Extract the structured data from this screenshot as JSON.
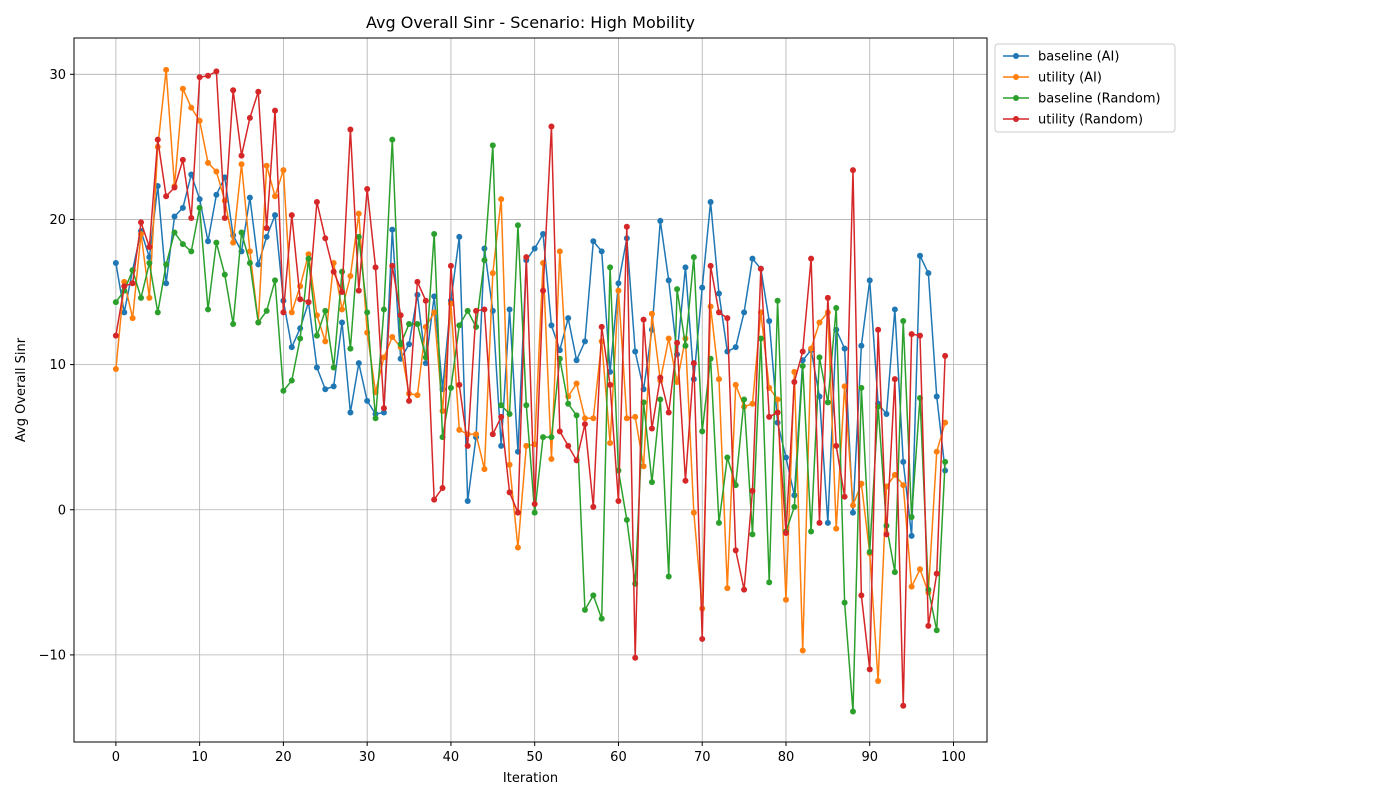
{
  "chart_data": {
    "type": "line",
    "title": "Avg Overall Sinr - Scenario: High Mobility",
    "xlabel": "Iteration",
    "ylabel": "Avg Overall Sinr",
    "xlim": [
      -5,
      104
    ],
    "ylim": [
      -16.0,
      32.5
    ],
    "x_ticks": [
      0,
      10,
      20,
      30,
      40,
      50,
      60,
      70,
      80,
      90,
      100
    ],
    "y_ticks": [
      -10,
      0,
      10,
      20,
      30
    ],
    "y_tick_labels": [
      "−10",
      "0",
      "10",
      "20",
      "30"
    ],
    "grid": true,
    "legend_position": "outside-upper-right",
    "x": [
      0,
      1,
      2,
      3,
      4,
      5,
      6,
      7,
      8,
      9,
      10,
      11,
      12,
      13,
      14,
      15,
      16,
      17,
      18,
      19,
      20,
      21,
      22,
      23,
      24,
      25,
      26,
      27,
      28,
      29,
      30,
      31,
      32,
      33,
      34,
      35,
      36,
      37,
      38,
      39,
      40,
      41,
      42,
      43,
      44,
      45,
      46,
      47,
      48,
      49,
      50,
      51,
      52,
      53,
      54,
      55,
      56,
      57,
      58,
      59,
      60,
      61,
      62,
      63,
      64,
      65,
      66,
      67,
      68,
      69,
      70,
      71,
      72,
      73,
      74,
      75,
      76,
      77,
      78,
      79,
      80,
      81,
      82,
      83,
      84,
      85,
      86,
      87,
      88,
      89,
      90,
      91,
      92,
      93,
      94,
      95,
      96,
      97,
      98,
      99
    ],
    "series": [
      {
        "name": "baseline (AI)",
        "color": "#1f77b4",
        "values": [
          17.0,
          13.6,
          16.5,
          19.2,
          17.4,
          22.3,
          15.6,
          20.2,
          20.8,
          23.1,
          21.4,
          18.5,
          21.7,
          22.9,
          18.9,
          17.8,
          21.5,
          16.9,
          18.8,
          20.3,
          14.4,
          11.2,
          12.5,
          14.3,
          9.8,
          8.3,
          8.5,
          12.9,
          6.7,
          10.1,
          7.5,
          6.6,
          6.7,
          19.3,
          10.4,
          11.4,
          14.8,
          10.1,
          14.7,
          8.3,
          14.4,
          18.8,
          0.6,
          5.0,
          18.0,
          13.7,
          4.4,
          13.8,
          4.0,
          17.2,
          18.0,
          19.0,
          12.7,
          11.0,
          13.2,
          10.3,
          11.6,
          18.5,
          17.8,
          9.5,
          15.6,
          18.7,
          10.9,
          8.3,
          12.4,
          19.9,
          15.8,
          10.7,
          16.7,
          9.0,
          15.3,
          21.2,
          14.9,
          10.9,
          11.2,
          13.6,
          17.3,
          16.6,
          13.0,
          6.0,
          3.6,
          1.0,
          10.3,
          11.0,
          7.8,
          -0.9,
          12.4,
          11.1,
          -0.2,
          11.3,
          15.8,
          7.3,
          6.6,
          13.8,
          3.3,
          -1.8,
          17.5,
          16.3,
          7.8,
          2.7
        ]
      },
      {
        "name": "utility (AI)",
        "color": "#ff7f0e",
        "values": [
          9.7,
          15.7,
          13.2,
          19.0,
          14.6,
          25.0,
          30.3,
          22.3,
          29.0,
          27.7,
          26.8,
          23.9,
          23.3,
          21.3,
          18.4,
          23.8,
          17.8,
          12.9,
          23.7,
          21.6,
          23.4,
          13.6,
          15.4,
          17.6,
          13.4,
          11.6,
          17.0,
          13.8,
          16.1,
          20.4,
          12.2,
          8.1,
          10.5,
          11.9,
          11.2,
          8.0,
          7.9,
          12.6,
          13.6,
          6.8,
          14.2,
          5.5,
          5.2,
          5.2,
          2.8,
          16.3,
          21.4,
          3.1,
          -2.6,
          4.4,
          4.5,
          17.0,
          3.5,
          17.8,
          7.8,
          8.7,
          6.3,
          6.3,
          11.6,
          4.6,
          15.1,
          6.3,
          6.4,
          3.0,
          13.5,
          8.9,
          11.8,
          8.8,
          11.8,
          -0.2,
          -6.8,
          14.0,
          9.0,
          -5.4,
          8.6,
          7.1,
          7.3,
          13.6,
          8.4,
          7.6,
          -6.2,
          9.5,
          -9.7,
          11.1,
          12.9,
          13.6,
          -1.3,
          8.5,
          0.3,
          1.8,
          -3.0,
          -11.8,
          1.6,
          2.4,
          1.7,
          -5.3,
          -4.1,
          -5.7,
          4.0,
          6.0
        ]
      },
      {
        "name": "baseline (Random)",
        "color": "#2ca02c",
        "values": [
          14.3,
          15.1,
          16.5,
          14.6,
          17.0,
          13.6,
          16.9,
          19.1,
          18.3,
          17.8,
          20.8,
          13.8,
          18.4,
          16.2,
          12.8,
          19.1,
          17.0,
          12.9,
          13.7,
          15.8,
          8.2,
          8.9,
          11.8,
          17.3,
          12.0,
          13.7,
          9.8,
          16.4,
          11.1,
          18.8,
          13.6,
          6.3,
          13.8,
          25.5,
          11.4,
          12.8,
          12.8,
          10.5,
          19.0,
          5.0,
          8.4,
          12.7,
          13.7,
          12.6,
          17.2,
          25.1,
          7.2,
          6.6,
          19.6,
          7.2,
          -0.2,
          5.0,
          5.0,
          10.4,
          7.3,
          6.5,
          -6.9,
          -5.9,
          -7.5,
          16.7,
          2.7,
          -0.7,
          -5.1,
          7.4,
          1.9,
          7.6,
          -4.6,
          15.2,
          11.3,
          17.4,
          5.4,
          10.4,
          -0.9,
          3.6,
          1.7,
          7.6,
          -1.7,
          11.8,
          -5.0,
          14.4,
          -1.5,
          0.2,
          9.9,
          -1.5,
          10.5,
          7.4,
          13.9,
          -6.4,
          -13.9,
          8.4,
          -2.9,
          7.1,
          -1.1,
          -4.3,
          13.0,
          -0.5,
          7.7,
          -5.5,
          -8.3,
          3.3
        ]
      },
      {
        "name": "utility (Random)",
        "color": "#d62728",
        "values": [
          12.0,
          15.4,
          15.6,
          19.8,
          18.1,
          25.5,
          21.6,
          22.2,
          24.1,
          20.1,
          29.8,
          29.9,
          30.2,
          20.1,
          28.9,
          24.4,
          27.0,
          28.8,
          19.4,
          27.5,
          13.6,
          20.3,
          14.5,
          14.3,
          21.2,
          18.7,
          16.4,
          15.0,
          26.2,
          15.1,
          22.1,
          16.7,
          7.0,
          16.8,
          13.4,
          7.5,
          15.7,
          14.4,
          0.7,
          1.5,
          16.8,
          8.6,
          4.4,
          13.7,
          13.8,
          5.2,
          6.4,
          1.2,
          -0.2,
          17.4,
          0.4,
          15.1,
          26.4,
          5.4,
          4.4,
          3.4,
          5.9,
          0.2,
          12.6,
          8.6,
          0.6,
          19.5,
          -10.2,
          13.1,
          5.6,
          9.1,
          6.7,
          11.5,
          2.0,
          10.1,
          -8.9,
          16.8,
          13.6,
          13.2,
          -2.8,
          -5.5,
          1.3,
          16.6,
          6.4,
          6.7,
          -1.6,
          8.8,
          10.9,
          17.3,
          -0.9,
          14.6,
          4.4,
          0.9,
          23.4,
          -5.9,
          -11.0,
          12.4,
          -1.7,
          9.0,
          -13.5,
          12.1,
          12.0,
          -8.0,
          -4.4,
          10.6
        ]
      }
    ]
  }
}
